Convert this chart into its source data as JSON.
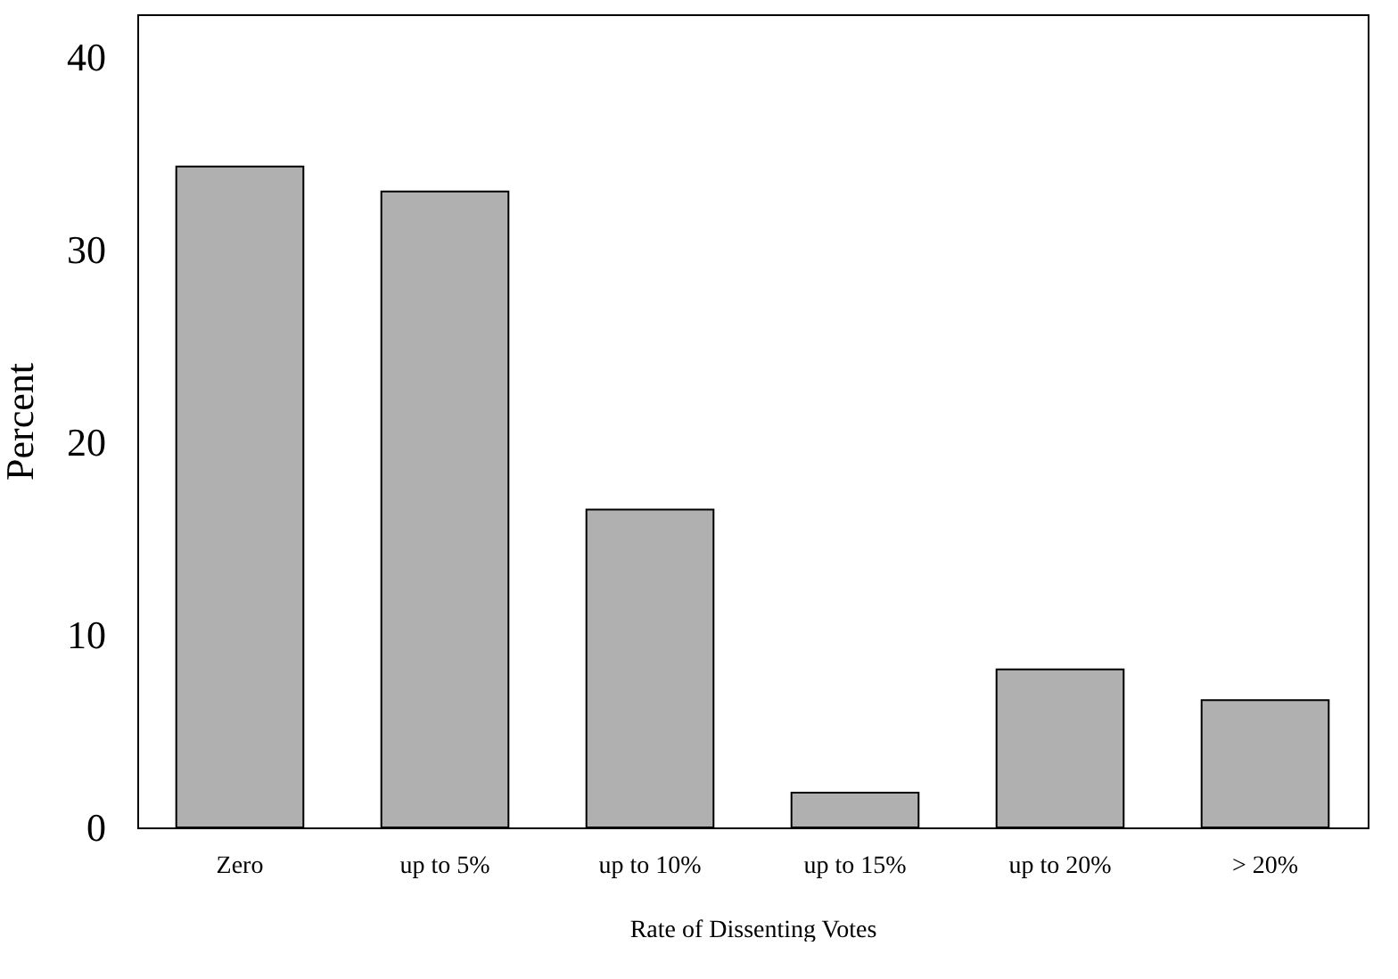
{
  "chart_data": {
    "type": "bar",
    "xlabel": "Rate of Dissenting Votes",
    "ylabel": "Percent",
    "categories": [
      "Zero",
      "up to 5%",
      "up to 10%",
      "up to 15%",
      "up to 20%",
      "> 20%"
    ],
    "values": [
      34.3,
      33.0,
      16.5,
      1.8,
      8.2,
      6.6
    ],
    "color": "#b0b0b0",
    "ylim": [
      0,
      42.2
    ],
    "yticks": [
      0,
      10,
      20,
      30,
      40
    ],
    "grid": false
  }
}
